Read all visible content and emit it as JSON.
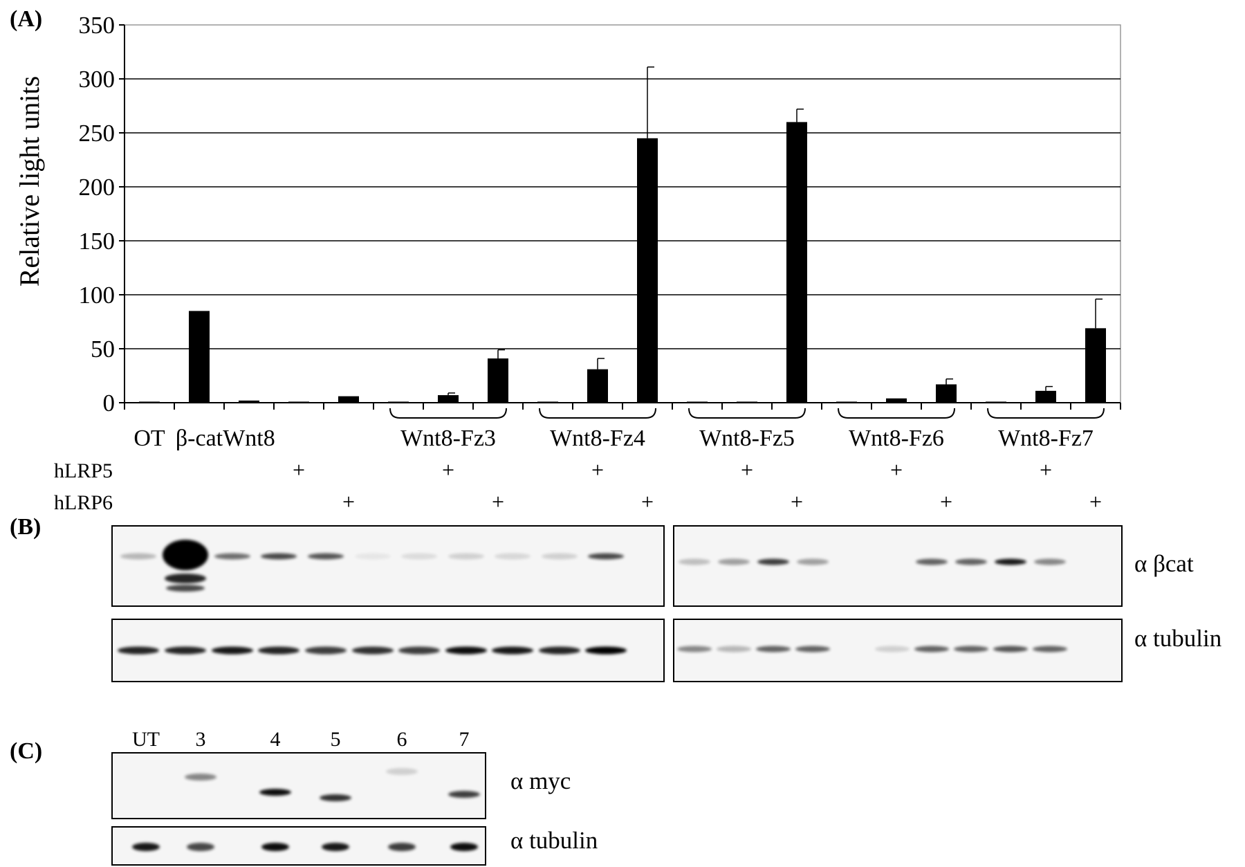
{
  "panels": {
    "a_label": "(A)",
    "b_label": "(B)",
    "c_label": "(C)"
  },
  "chart_data": {
    "type": "bar",
    "ylabel": "Relative light units",
    "ylim": [
      0,
      350
    ],
    "yticks": [
      0,
      50,
      100,
      150,
      200,
      250,
      300,
      350
    ],
    "grid": true,
    "legend": "none",
    "bar_color": "#000000",
    "n_positions": 20,
    "x_labels": [
      "OT",
      "β-cat",
      "Wnt8"
    ],
    "group_labels": [
      "Wnt8-Fz3",
      "Wnt8-Fz4",
      "Wnt8-Fz5",
      "Wnt8-Fz6",
      "Wnt8-Fz7"
    ],
    "row_labels": {
      "hlrp5": "hLRP5",
      "hlrp6": "hLRP6",
      "plus": "+"
    },
    "hLRP5_positions": [
      4,
      7,
      10,
      13,
      16,
      19
    ],
    "hLRP6_positions": [
      5,
      8,
      11,
      14,
      17,
      20
    ],
    "values": [
      1,
      85,
      2,
      1,
      6,
      1,
      7,
      41,
      1,
      31,
      245,
      1,
      1,
      260,
      1,
      4,
      17,
      1,
      11,
      69
    ],
    "errors": [
      0,
      0,
      0,
      0,
      0,
      0,
      2,
      8,
      0,
      10,
      66,
      0,
      0,
      12,
      0,
      0,
      5,
      0,
      4,
      27
    ]
  },
  "blots": {
    "b_beta_cat": "α βcat",
    "b_tubulin": "α tubulin",
    "c_lanes": [
      "UT",
      "3",
      "4",
      "5",
      "6",
      "7"
    ],
    "c_myc": "α myc",
    "c_tubulin": "α tubulin"
  }
}
